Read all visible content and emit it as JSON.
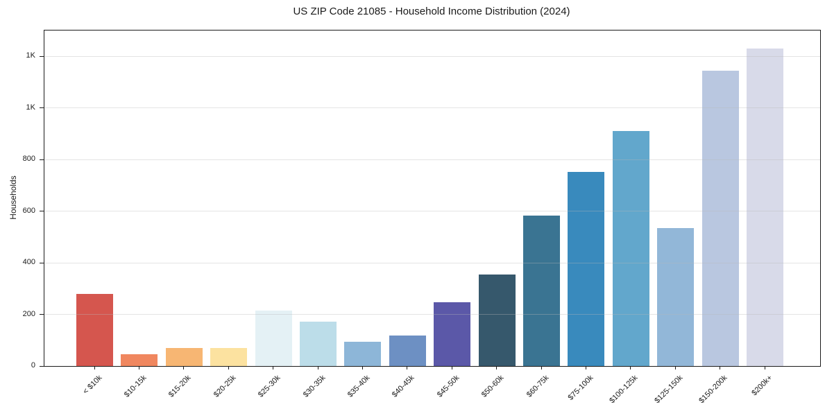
{
  "chart_data": {
    "type": "bar",
    "title": "US ZIP Code 21085 - Household Income Distribution (2024)",
    "xlabel": "",
    "ylabel": "Households",
    "categories": [
      "< $10k",
      "$10-15k",
      "$15-20k",
      "$20-25k",
      "$25-30k",
      "$30-35k",
      "$35-40k",
      "$40-45k",
      "$45-50k",
      "$50-60k",
      "$60-75k",
      "$75-100k",
      "$100-125k",
      "$125-150k",
      "$150-200k",
      "$200k+"
    ],
    "values": [
      280,
      46,
      70,
      69,
      215,
      173,
      94,
      118,
      247,
      355,
      584,
      752,
      910,
      535,
      1145,
      1230
    ],
    "bar_colors": [
      "#d5564e",
      "#f0875f",
      "#f7b673",
      "#fce2a0",
      "#e4f1f5",
      "#bcdde9",
      "#8db6d8",
      "#6d90c3",
      "#5b58a8",
      "#36586c",
      "#3a7492",
      "#398abd",
      "#62a7cc",
      "#92b7d8",
      "#b9c7e0",
      "#d8dae9"
    ],
    "ylim": [
      0,
      1300
    ],
    "yticks": [
      {
        "value": 0,
        "label": "0"
      },
      {
        "value": 200,
        "label": "200"
      },
      {
        "value": 400,
        "label": "400"
      },
      {
        "value": 600,
        "label": "600"
      },
      {
        "value": 800,
        "label": "800"
      },
      {
        "value": 1000,
        "label": "1K"
      },
      {
        "value": 1200,
        "label": "1K"
      }
    ],
    "grid": "horizontal, drawn above bars, light gray",
    "legend_position": "none"
  }
}
